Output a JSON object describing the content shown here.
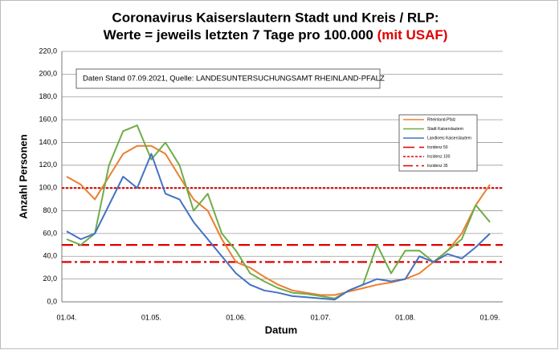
{
  "chart_data": {
    "type": "line",
    "title": "Coronavirus Kaiserslautern Stadt und Kreis / RLP:",
    "subtitle": "Werte = jeweils letzten 7 Tage pro 100.000",
    "subtitle_highlight": "(mit USAF)",
    "annotation": "Daten Stand 07.09.2021, Quelle: LANDESUNTERSUCHUNGSAMT RHEINLAND-PFALZ",
    "x_label": "Datum",
    "y_label": "Anzahl Personen",
    "categories": [
      "01.04.",
      null,
      null,
      null,
      null,
      null,
      "01.05.",
      null,
      null,
      null,
      null,
      null,
      "01.06.",
      null,
      null,
      null,
      null,
      null,
      "01.07.",
      null,
      null,
      null,
      null,
      null,
      "01.08.",
      null,
      null,
      null,
      null,
      null,
      "01.09."
    ],
    "series": [
      {
        "name": "Rheinland-Pfalz",
        "color": "#ed7d31",
        "values": [
          110,
          103,
          90,
          110,
          130,
          137,
          137,
          130,
          110,
          90,
          80,
          55,
          35,
          30,
          22,
          15,
          10,
          8,
          6,
          6,
          9,
          12,
          15,
          17,
          20,
          25,
          35,
          45,
          60,
          85,
          103
        ]
      },
      {
        "name": "Stadt Kaiserslautern",
        "color": "#70ad47",
        "values": [
          55,
          50,
          60,
          120,
          150,
          155,
          125,
          140,
          120,
          80,
          95,
          60,
          45,
          25,
          18,
          12,
          8,
          7,
          5,
          3,
          10,
          15,
          50,
          25,
          45,
          45,
          35,
          45,
          55,
          85,
          70
        ]
      },
      {
        "name": "Landkreis Kaiserslautern",
        "color": "#4472c4",
        "values": [
          62,
          55,
          60,
          85,
          110,
          100,
          130,
          95,
          90,
          70,
          55,
          40,
          25,
          15,
          10,
          8,
          5,
          4,
          3,
          2,
          10,
          15,
          20,
          18,
          20,
          40,
          35,
          42,
          38,
          48,
          60
        ]
      }
    ],
    "reference_lines": [
      {
        "name": "Inzidenz 50",
        "value": 50,
        "color": "#e00000",
        "dash": "dashed"
      },
      {
        "name": "Inzidenz 100",
        "value": 100,
        "color": "#e00000",
        "dash": "dotted"
      },
      {
        "name": "Inzidenz 35",
        "value": 35,
        "color": "#e00000",
        "dash": "dashdot"
      }
    ],
    "ylim": [
      0,
      220
    ],
    "yticks": [
      {
        "value": 0,
        "label": "0,0"
      },
      {
        "value": 20,
        "label": "20,0"
      },
      {
        "value": 40,
        "label": "40,0"
      },
      {
        "value": 60,
        "label": "60,0"
      },
      {
        "value": 80,
        "label": "80,0"
      },
      {
        "value": 100,
        "label": "100,0"
      },
      {
        "value": 120,
        "label": "120,0"
      },
      {
        "value": 140,
        "label": "140,0"
      },
      {
        "value": 160,
        "label": "160,0"
      },
      {
        "value": 180,
        "label": "180,0"
      },
      {
        "value": 200,
        "label": "200,0"
      },
      {
        "value": 220,
        "label": "220,0"
      }
    ],
    "grid": true
  }
}
